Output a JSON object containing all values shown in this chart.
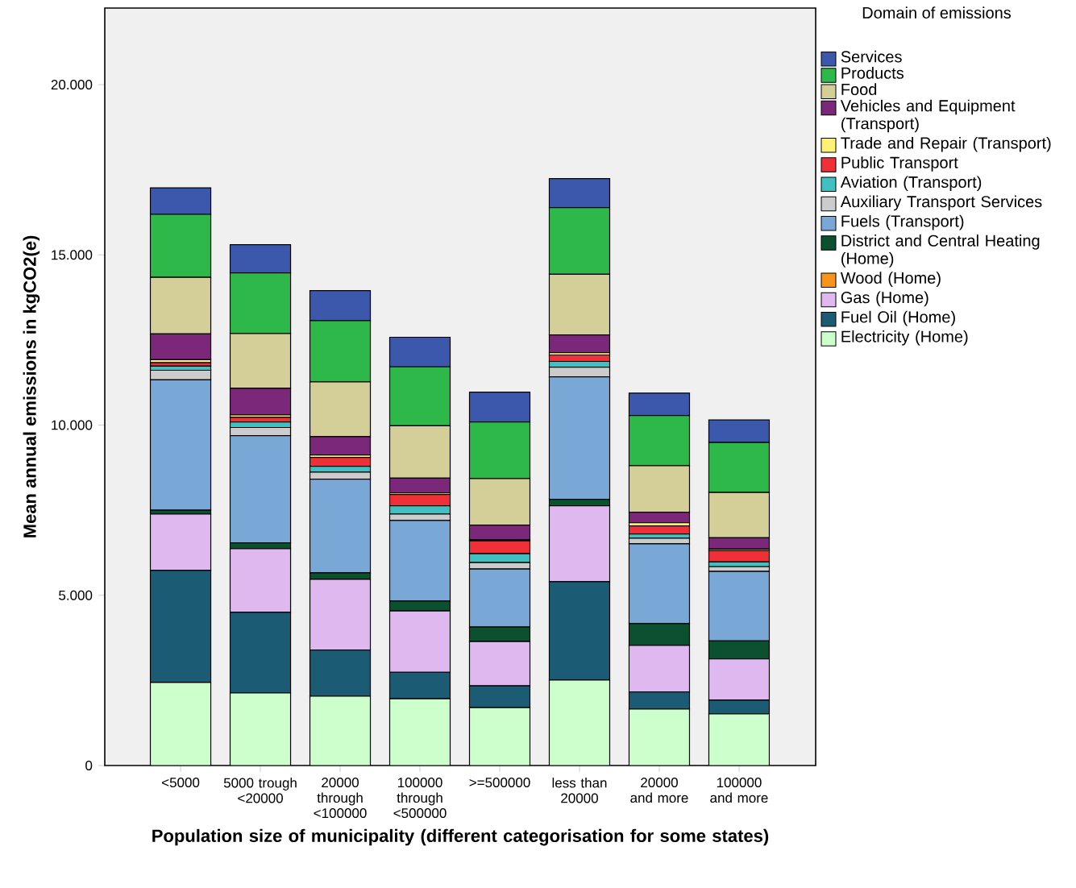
{
  "chart_data": {
    "type": "bar",
    "stacked": true,
    "xlabel": "Population size of municipality (different categorisation for some states)",
    "ylabel": "Mean annual emissions in kgCO2(e)",
    "legend_title": "Domain of emissions",
    "legend": "right",
    "categories": [
      "<5000",
      "5000 trough <20000",
      "20000 through <100000",
      "100000 through <500000",
      ">=500000",
      "less than 20000",
      "20000 and more",
      "100000 and more"
    ],
    "ylim": [
      0,
      22250
    ],
    "yticks": [
      {
        "value": 0,
        "label": "0"
      },
      {
        "value": 5000,
        "label": "5.000"
      },
      {
        "value": 10000,
        "label": "10.000"
      },
      {
        "value": 15000,
        "label": "15.000"
      },
      {
        "value": 20000,
        "label": "20.000"
      }
    ],
    "series": [
      {
        "name": "Electricity (Home)",
        "color": "#ccffcc",
        "values": [
          2440,
          2130,
          2040,
          1960,
          1700,
          2510,
          1660,
          1520
        ]
      },
      {
        "name": "Fuel Oil (Home)",
        "color": "#1b5c74",
        "values": [
          3290,
          2370,
          1350,
          780,
          640,
          2890,
          500,
          400
        ]
      },
      {
        "name": "Gas (Home)",
        "color": "#dfb8f0",
        "values": [
          1660,
          1870,
          2080,
          1800,
          1300,
          2230,
          1370,
          1210
        ]
      },
      {
        "name": "Wood (Home)",
        "color": "#f7941d",
        "values": [
          null,
          null,
          null,
          null,
          null,
          null,
          null,
          null
        ]
      },
      {
        "name": "District and Central Heating (Home)",
        "color": "#0b5130",
        "values": [
          110,
          170,
          190,
          290,
          430,
          190,
          640,
          530
        ]
      },
      {
        "name": "Fuels (Transport)",
        "color": "#7aa8d6",
        "values": [
          3830,
          3150,
          2750,
          2370,
          1700,
          3600,
          2340,
          2040
        ]
      },
      {
        "name": "Auxiliary Transport Services",
        "color": "#cccccc",
        "values": [
          280,
          240,
          210,
          190,
          190,
          280,
          170,
          140
        ]
      },
      {
        "name": "Aviation (Transport)",
        "color": "#40c0c0",
        "values": [
          120,
          160,
          170,
          240,
          260,
          170,
          120,
          140
        ]
      },
      {
        "name": "Public Transport",
        "color": "#ef3038",
        "values": [
          100,
          140,
          260,
          330,
          380,
          190,
          240,
          330
        ]
      },
      {
        "name": "Trade and Repair (Transport)",
        "color": "#fff176",
        "values": [
          90,
          70,
          70,
          50,
          30,
          70,
          90,
          50
        ]
      },
      {
        "name": "Vehicles and Equipment (Transport)",
        "color": "#7b287a",
        "values": [
          760,
          780,
          540,
          430,
          430,
          520,
          310,
          330
        ]
      },
      {
        "name": "Food",
        "color": "#d4ce98",
        "values": [
          1660,
          1610,
          1610,
          1540,
          1370,
          1780,
          1370,
          1330
        ]
      },
      {
        "name": "Products",
        "color": "#2fb84a",
        "values": [
          1850,
          1780,
          1800,
          1730,
          1660,
          1960,
          1470,
          1470
        ]
      },
      {
        "name": "Services",
        "color": "#3c58ac",
        "values": [
          780,
          830,
          880,
          870,
          880,
          850,
          660,
          660
        ]
      }
    ]
  }
}
